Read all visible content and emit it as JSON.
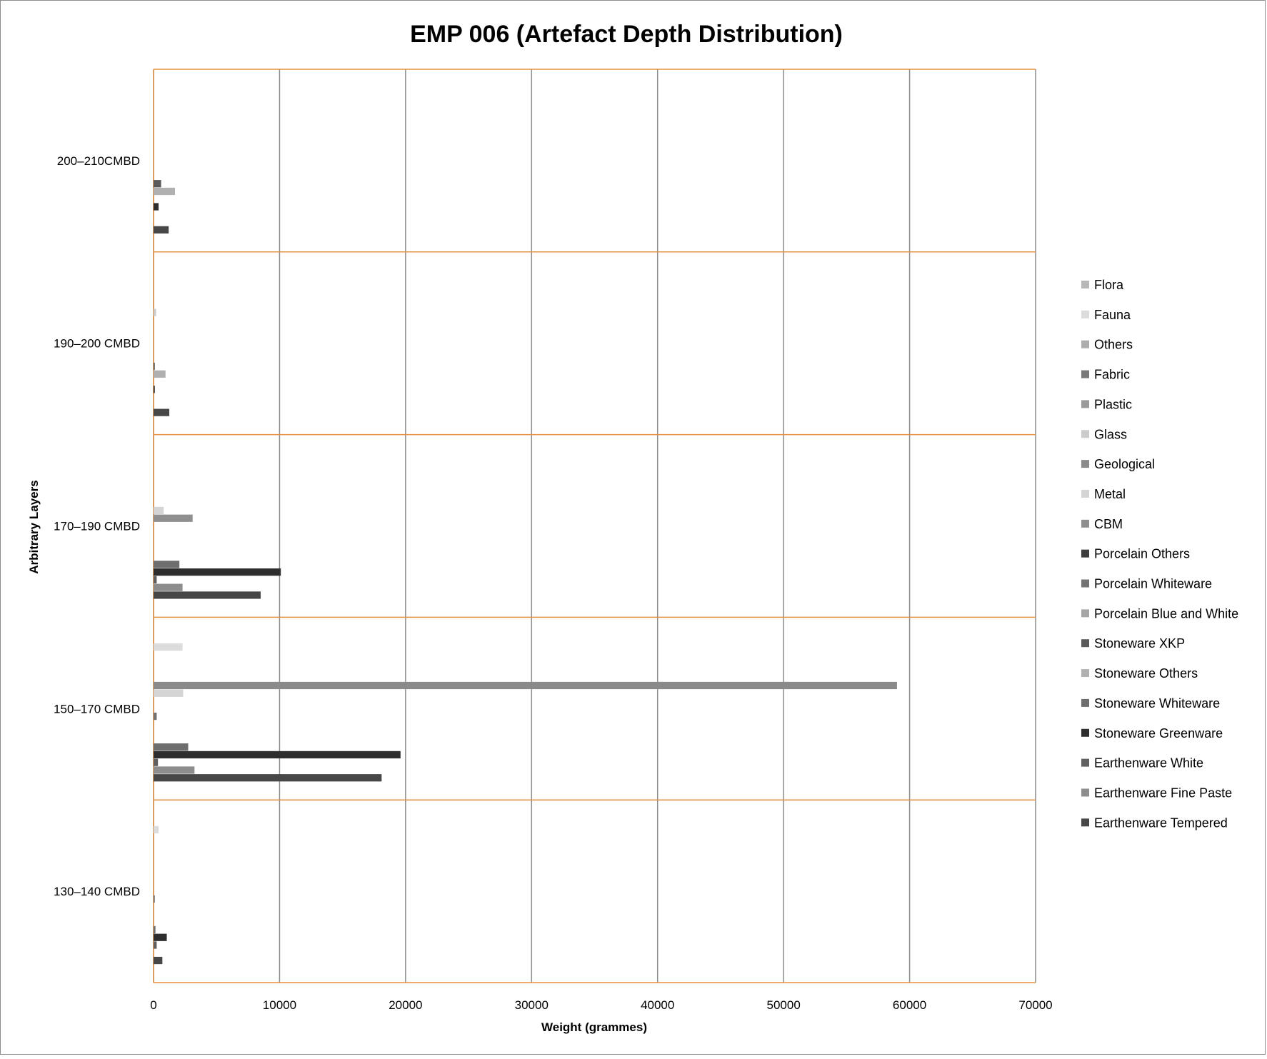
{
  "chart_data": {
    "type": "bar",
    "orientation": "horizontal",
    "title": "EMP 006 (Artefact Depth Distribution)",
    "xlabel": "Weight (grammes)",
    "ylabel": "Arbitrary Layers",
    "xlim": [
      0,
      70000
    ],
    "xticks": [
      0,
      10000,
      20000,
      30000,
      40000,
      50000,
      60000,
      70000
    ],
    "grid": true,
    "legend_position": "right",
    "categories": [
      "200–210CMBD",
      "190–200 CMBD",
      "170–190 CMBD",
      "150–170 CMBD",
      "130–140 CMBD"
    ],
    "series": [
      {
        "name": "Flora",
        "color": "#b8b8b8",
        "values": [
          0,
          0,
          0,
          0,
          0
        ]
      },
      {
        "name": "Fauna",
        "color": "#dcdcdc",
        "values": [
          0,
          0,
          0,
          2300,
          400
        ]
      },
      {
        "name": "Others",
        "color": "#adadad",
        "values": [
          0,
          0,
          0,
          0,
          0
        ]
      },
      {
        "name": "Fabric",
        "color": "#7a7a7a",
        "values": [
          0,
          0,
          0,
          0,
          0
        ]
      },
      {
        "name": "Plastic",
        "color": "#9a9a9a",
        "values": [
          0,
          0,
          0,
          0,
          0
        ]
      },
      {
        "name": "Glass",
        "color": "#cccccc",
        "values": [
          0,
          200,
          0,
          0,
          0
        ]
      },
      {
        "name": "Geological",
        "color": "#8a8a8a",
        "values": [
          0,
          0,
          0,
          59000,
          0
        ]
      },
      {
        "name": "Metal",
        "color": "#d4d4d4",
        "values": [
          0,
          0,
          800,
          2350,
          0
        ]
      },
      {
        "name": "CBM",
        "color": "#8f8f8f",
        "values": [
          0,
          0,
          3100,
          0,
          0
        ]
      },
      {
        "name": "Porcelain Others",
        "color": "#3d3d3d",
        "values": [
          0,
          0,
          0,
          0,
          0
        ]
      },
      {
        "name": "Porcelain Whiteware",
        "color": "#737373",
        "values": [
          0,
          0,
          0,
          250,
          100
        ]
      },
      {
        "name": "Porcelain Blue and White",
        "color": "#a6a6a6",
        "values": [
          0,
          0,
          0,
          0,
          0
        ]
      },
      {
        "name": "Stoneware XKP",
        "color": "#5a5a5a",
        "values": [
          600,
          100,
          0,
          0,
          0
        ]
      },
      {
        "name": "Stoneware Others",
        "color": "#b0b0b0",
        "values": [
          1700,
          950,
          0,
          0,
          0
        ]
      },
      {
        "name": "Stoneware Whiteware",
        "color": "#6e6e6e",
        "values": [
          0,
          0,
          2050,
          2750,
          150
        ]
      },
      {
        "name": "Stoneware Greenware",
        "color": "#2e2e2e",
        "values": [
          400,
          100,
          10100,
          19600,
          1050
        ]
      },
      {
        "name": "Earthenware White",
        "color": "#606060",
        "values": [
          0,
          0,
          250,
          350,
          250
        ]
      },
      {
        "name": "Earthenware Fine Paste",
        "color": "#8d8d8d",
        "values": [
          0,
          0,
          2300,
          3250,
          0
        ]
      },
      {
        "name": "Earthenware Tempered",
        "color": "#474747",
        "values": [
          1200,
          1250,
          8500,
          18100,
          700
        ]
      }
    ]
  }
}
